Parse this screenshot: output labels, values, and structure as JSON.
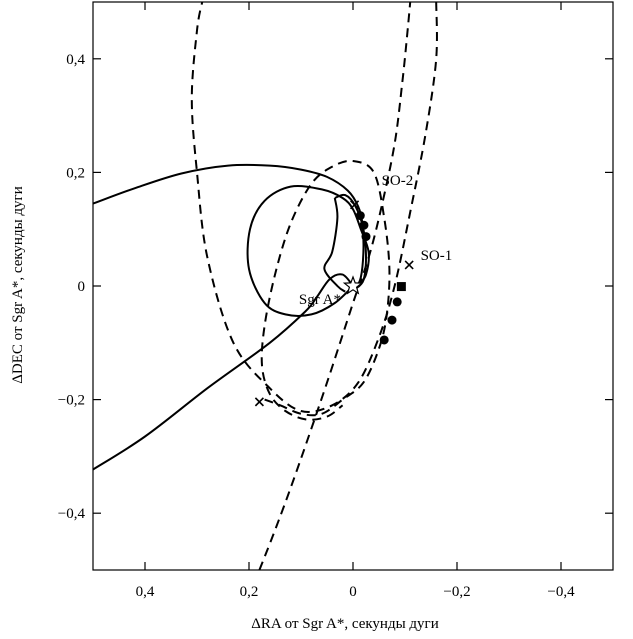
{
  "chart_data": {
    "type": "line",
    "xlabel": "ΔRA от Sgr A*, секунды дуги",
    "ylabel": "ΔDEC от Sgr A*, секунды дуги",
    "xlim": [
      0.5,
      -0.5
    ],
    "ylim": [
      -0.5,
      0.5
    ],
    "x_reversed": true,
    "xticks": [
      0.4,
      0.2,
      0,
      -0.2,
      -0.4
    ],
    "xtick_labels": [
      "0,4",
      "0,2",
      "0",
      "−0,2",
      "−0,4"
    ],
    "yticks": [
      -0.4,
      -0.2,
      0,
      0.2,
      0.4
    ],
    "ytick_labels": [
      "−0,4",
      "−0,2",
      "0",
      "0,2",
      "0,4"
    ],
    "grid": false,
    "center": {
      "label": "Sgr A*",
      "x": 0.0,
      "y": 0.0,
      "marker": "star"
    },
    "series": [
      {
        "name": "SO-2",
        "label_at": {
          "x": -0.055,
          "y": 0.187
        },
        "curves": [
          {
            "style": "solid",
            "points": [
              [
                0.5,
                0.145
              ],
              [
                0.42,
                0.172
              ],
              [
                0.33,
                0.198
              ],
              [
                0.24,
                0.212
              ],
              [
                0.16,
                0.212
              ],
              [
                0.1,
                0.205
              ],
              [
                0.05,
                0.192
              ],
              [
                0.01,
                0.168
              ],
              [
                -0.01,
                0.14
              ],
              [
                -0.018,
                0.11
              ],
              [
                -0.02,
                0.06
              ],
              [
                -0.015,
                0.015
              ],
              [
                -0.005,
                -0.003
              ],
              [
                0.0,
                0.0
              ]
            ]
          },
          {
            "style": "solid",
            "points": [
              [
                0.0,
                0.0
              ],
              [
                0.02,
                0.02
              ],
              [
                0.045,
                0.012
              ],
              [
                0.07,
                -0.02
              ],
              [
                0.092,
                -0.045
              ],
              [
                0.16,
                -0.1
              ],
              [
                0.28,
                -0.18
              ],
              [
                0.4,
                -0.265
              ],
              [
                0.5,
                -0.323
              ]
            ]
          },
          {
            "style": "solid",
            "points": [
              [
                0.0,
                0.0
              ],
              [
                0.035,
                -0.03
              ],
              [
                0.08,
                -0.05
              ],
              [
                0.13,
                -0.05
              ],
              [
                0.17,
                -0.03
              ],
              [
                0.2,
                0.03
              ],
              [
                0.198,
                0.1
              ],
              [
                0.17,
                0.15
              ],
              [
                0.12,
                0.175
              ],
              [
                0.06,
                0.17
              ],
              [
                0.02,
                0.155
              ],
              [
                0.0,
                0.135
              ],
              [
                -0.015,
                0.1
              ],
              [
                -0.03,
                0.06
              ],
              [
                -0.025,
                0.02
              ],
              [
                -0.01,
                0.0
              ]
            ]
          },
          {
            "style": "solid",
            "points": [
              [
                0.035,
                0.155
              ],
              [
                0.03,
                0.12
              ],
              [
                0.04,
                0.06
              ],
              [
                0.055,
                0.03
              ],
              [
                0.03,
                0.0
              ],
              [
                0.015,
                -0.01
              ]
            ]
          },
          {
            "style": "solid",
            "points": [
              [
                0.035,
                0.155
              ],
              [
                0.015,
                0.16
              ],
              [
                -0.005,
                0.14
              ],
              [
                -0.02,
                0.1
              ],
              [
                -0.025,
                0.05
              ],
              [
                -0.02,
                0.01
              ],
              [
                -0.005,
                -0.005
              ]
            ]
          }
        ],
        "markers": [
          {
            "x": -0.003,
            "y": 0.143,
            "m": "cross"
          },
          {
            "x": -0.014,
            "y": 0.124,
            "m": "dot"
          },
          {
            "x": -0.021,
            "y": 0.107,
            "m": "dot"
          },
          {
            "x": -0.025,
            "y": 0.087,
            "m": "dot"
          }
        ]
      },
      {
        "name": "SO-1",
        "label_at": {
          "x": -0.13,
          "y": 0.055
        },
        "curves": [
          {
            "style": "dashed",
            "points": [
              [
                0.18,
                -0.5
              ],
              [
                0.15,
                -0.43
              ],
              [
                0.11,
                -0.33
              ],
              [
                0.05,
                -0.17
              ],
              [
                0.0,
                -0.03
              ],
              [
                -0.03,
                0.05
              ],
              [
                -0.055,
                0.14
              ],
              [
                -0.08,
                0.25
              ],
              [
                -0.095,
                0.36
              ],
              [
                -0.105,
                0.45
              ],
              [
                -0.11,
                0.5
              ]
            ]
          },
          {
            "style": "dashed",
            "points": [
              [
                -0.16,
                0.5
              ],
              [
                -0.16,
                0.4
              ],
              [
                -0.14,
                0.27
              ],
              [
                -0.11,
                0.13
              ],
              [
                -0.08,
                0.0
              ],
              [
                -0.05,
                -0.09
              ],
              [
                -0.01,
                -0.17
              ],
              [
                0.04,
                -0.21
              ],
              [
                0.1,
                -0.22
              ],
              [
                0.16,
                -0.18
              ],
              [
                0.23,
                -0.1
              ],
              [
                0.28,
                0.05
              ],
              [
                0.3,
                0.2
              ],
              [
                0.31,
                0.33
              ],
              [
                0.3,
                0.45
              ],
              [
                0.29,
                0.5
              ]
            ]
          },
          {
            "style": "dashed",
            "points": [
              [
                0.17,
                -0.2
              ],
              [
                0.14,
                -0.21
              ],
              [
                0.1,
                -0.225
              ],
              [
                0.06,
                -0.225
              ],
              [
                0.02,
                -0.2
              ],
              [
                -0.02,
                -0.17
              ],
              [
                -0.05,
                -0.11
              ],
              [
                -0.065,
                -0.05
              ],
              [
                -0.07,
                0.03
              ],
              [
                -0.06,
                0.12
              ],
              [
                -0.04,
                0.2
              ],
              [
                0.0,
                0.22
              ],
              [
                0.04,
                0.21
              ],
              [
                0.08,
                0.18
              ],
              [
                0.12,
                0.11
              ],
              [
                0.15,
                0.02
              ],
              [
                0.17,
                -0.07
              ],
              [
                0.175,
                -0.14
              ],
              [
                0.16,
                -0.19
              ],
              [
                0.13,
                -0.22
              ],
              [
                0.09,
                -0.235
              ],
              [
                0.05,
                -0.23
              ],
              [
                0.02,
                -0.21
              ]
            ]
          }
        ],
        "markers": [
          {
            "x": -0.108,
            "y": 0.037,
            "m": "cross"
          },
          {
            "x": -0.093,
            "y": -0.001,
            "m": "square"
          },
          {
            "x": -0.085,
            "y": -0.028,
            "m": "dot"
          },
          {
            "x": -0.075,
            "y": -0.06,
            "m": "dot"
          },
          {
            "x": -0.06,
            "y": -0.095,
            "m": "dot"
          },
          {
            "x": 0.18,
            "y": -0.204,
            "m": "cross"
          }
        ]
      }
    ]
  }
}
